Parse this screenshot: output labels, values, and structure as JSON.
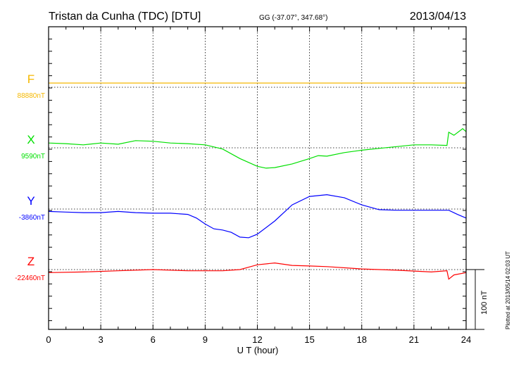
{
  "chart_data": {
    "type": "line",
    "title": "Tristan da Cunha (TDC)  [DTU]",
    "coords": "GG (-37.07°, 347.68°)",
    "date": "2013/04/13",
    "xlabel": "U T (hour)",
    "xlim": [
      0,
      24
    ],
    "xticks": [
      "0",
      "3",
      "6",
      "9",
      "12",
      "15",
      "18",
      "21",
      "24"
    ],
    "scale_label": "100 nT",
    "scale_nT": 100,
    "footer": "Plotted at 2013/05/14 02:03 UT",
    "series": [
      {
        "name": "F",
        "baseline_label": "88880nT",
        "color": "#f5b800",
        "x": [
          0,
          24
        ],
        "y": [
          7,
          7
        ]
      },
      {
        "name": "X",
        "baseline_label": "9590nT",
        "color": "#00e000",
        "x": [
          0,
          1,
          2,
          3,
          4,
          5,
          6,
          7,
          8,
          9,
          10,
          11,
          12,
          12.5,
          13,
          14,
          15,
          15.5,
          16,
          17,
          18,
          19,
          20,
          21,
          22,
          22.9,
          23,
          23.3,
          23.8,
          24
        ],
        "y": [
          8,
          7,
          5,
          8,
          6,
          12,
          11,
          8,
          7,
          5,
          -2,
          -18,
          -31,
          -34,
          -33,
          -27,
          -18,
          -13,
          -14,
          -8,
          -4,
          -1,
          2,
          5,
          5,
          4,
          26,
          21,
          32,
          27
        ]
      },
      {
        "name": "Y",
        "baseline_label": "-3860nT",
        "color": "#0000ff",
        "x": [
          0,
          1,
          2,
          3,
          4,
          5,
          6,
          7,
          8,
          8.5,
          9,
          9.5,
          10,
          10.5,
          11,
          11.5,
          12,
          13,
          14,
          15,
          16,
          17,
          18,
          19,
          20,
          21,
          22,
          23,
          23.5,
          24
        ],
        "y": [
          -4,
          -5,
          -6,
          -6,
          -4,
          -6,
          -7,
          -7,
          -9,
          -15,
          -25,
          -33,
          -35,
          -39,
          -47,
          -48,
          -42,
          -20,
          7,
          21,
          24,
          19,
          7,
          -1,
          -2,
          -2,
          -2,
          -2,
          -9,
          -15
        ]
      },
      {
        "name": "Z",
        "baseline_label": "-22460nT",
        "color": "#ff0000",
        "x": [
          0,
          2,
          4,
          6,
          8,
          10,
          11,
          12,
          13,
          14,
          15,
          16,
          18,
          20,
          22,
          22.9,
          23,
          23.3,
          24
        ],
        "y": [
          -5,
          -4,
          -2,
          0,
          -2,
          -2,
          0,
          8,
          11,
          7,
          6,
          5,
          1,
          -1,
          -4,
          -2,
          -16,
          -9,
          -5
        ]
      }
    ]
  }
}
